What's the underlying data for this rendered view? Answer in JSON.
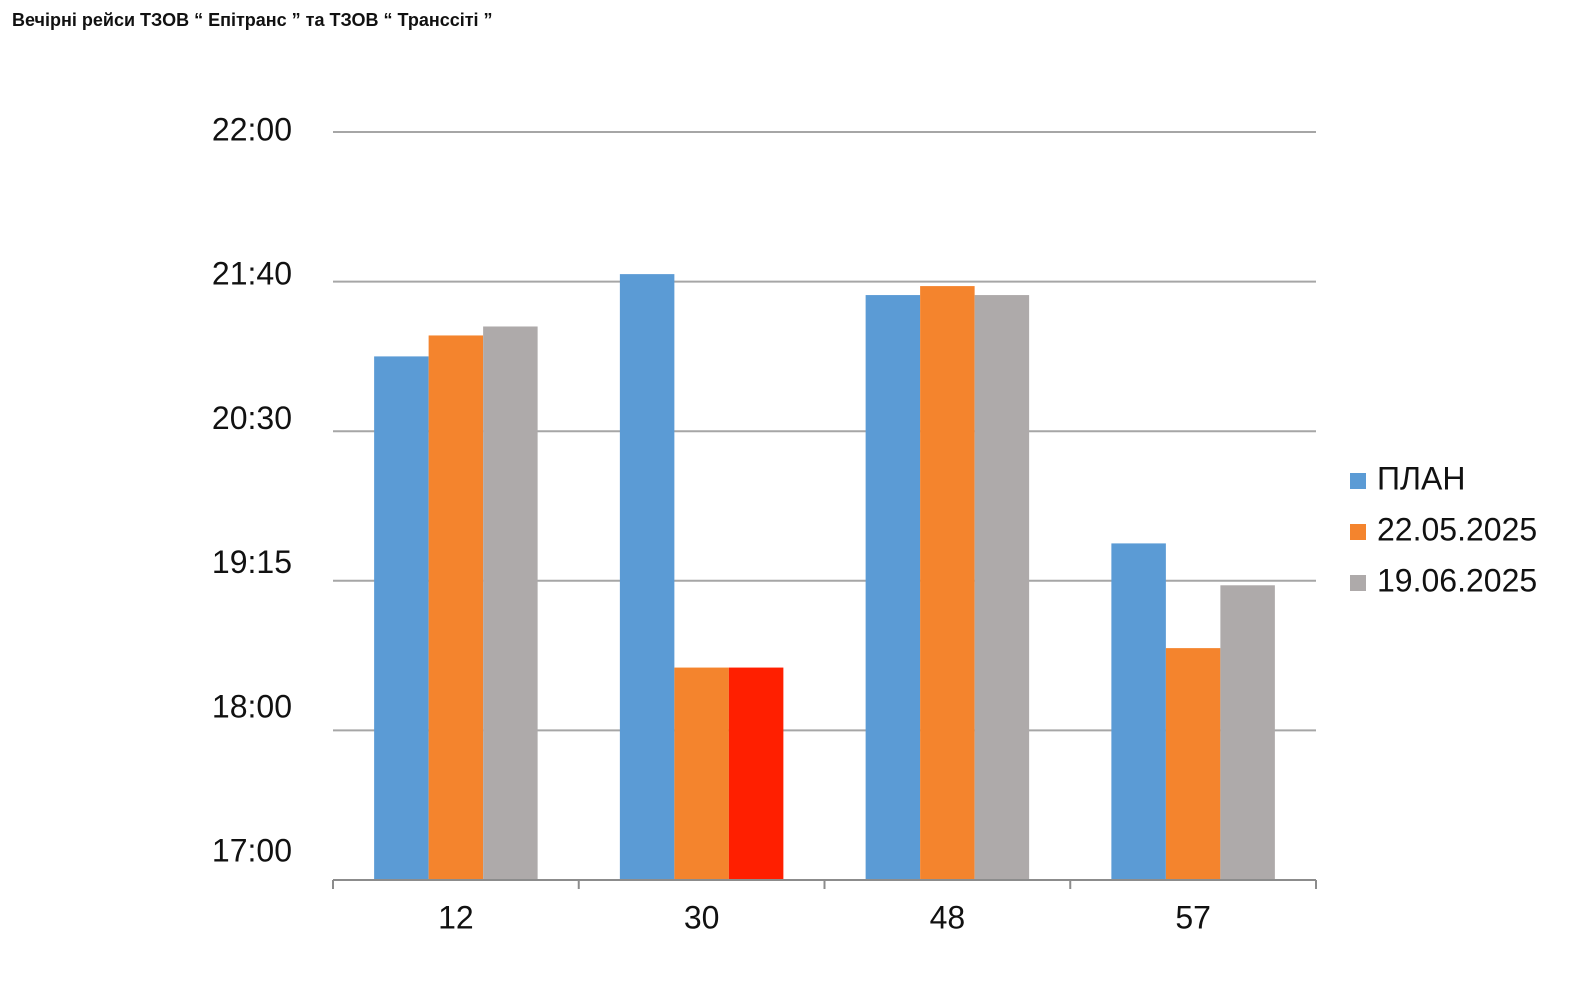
{
  "chart_data": {
    "type": "bar",
    "title": "Вечірні рейси ТЗОВ “ Епітранс ” та ТЗОВ “ Транссіті ”",
    "categories": [
      "12",
      "30",
      "48",
      "57"
    ],
    "series": [
      {
        "name": "ПЛАН",
        "color": "#5b9bd5",
        "values": [
          3.5,
          4.05,
          3.91,
          2.25
        ]
      },
      {
        "name": "22.05.2025",
        "color": "#f4842d",
        "values": [
          3.64,
          1.42,
          3.97,
          1.55
        ]
      },
      {
        "name": "19.06.2025",
        "color": "#aeaaaa",
        "values": [
          3.7,
          1.42,
          3.91,
          1.97
        ],
        "point_colors": [
          "#aeaaaa",
          "#ff1f00",
          "#aeaaaa",
          "#aeaaaa"
        ]
      }
    ],
    "ylim": [
      0,
      5
    ],
    "yticks": [
      {
        "value": 0,
        "label": "17:00"
      },
      {
        "value": 1,
        "label": "18:00"
      },
      {
        "value": 2,
        "label": "19:15"
      },
      {
        "value": 3,
        "label": "20:30"
      },
      {
        "value": 4,
        "label": "21:40"
      },
      {
        "value": 5,
        "label": "22:00"
      }
    ],
    "grid": true,
    "legend": "right"
  }
}
